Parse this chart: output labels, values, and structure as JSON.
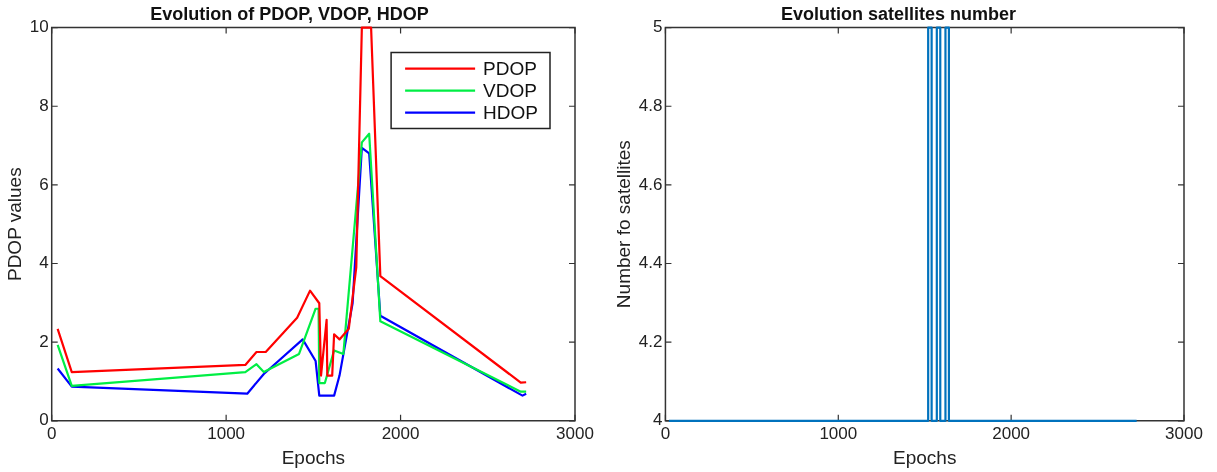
{
  "chart_data": [
    {
      "type": "line",
      "title": "Evolution of PDOP, VDOP, HDOP",
      "xlabel": "Epochs",
      "ylabel": "PDOP values",
      "xlim": [
        0,
        3000
      ],
      "xticks": [
        0,
        1000,
        2000,
        3000
      ],
      "ylim": [
        0,
        10
      ],
      "yticks": [
        0,
        2,
        4,
        6,
        8,
        10
      ],
      "legend": "top right",
      "grid": false,
      "marker": "none",
      "line_style": "solid",
      "series": [
        {
          "name": "PDOP",
          "color": "#ff0000",
          "x": [
            34,
            115,
            1110,
            1174,
            1227,
            1407,
            1481,
            1534,
            1544,
            1576,
            1580,
            1608,
            1619,
            1650,
            1703,
            1746,
            1778,
            1831,
            1884,
            2689,
            2720
          ],
          "values": [
            2.34,
            1.24,
            1.42,
            1.75,
            1.75,
            2.62,
            3.31,
            2.99,
            1.15,
            2.57,
            1.15,
            1.15,
            2.2,
            2.07,
            2.34,
            3.9,
            10,
            10,
            3.68,
            0.97,
            0.98
          ]
        },
        {
          "name": "VDOP",
          "color": "#00ee44",
          "x": [
            34,
            115,
            1110,
            1174,
            1216,
            1418,
            1513,
            1530,
            1534,
            1566,
            1619,
            1672,
            1778,
            1820,
            1841,
            1884,
            2689,
            2720
          ],
          "values": [
            1.93,
            0.89,
            1.24,
            1.44,
            1.24,
            1.7,
            2.85,
            2.85,
            0.96,
            0.96,
            1.79,
            1.7,
            7.08,
            7.3,
            5.74,
            2.53,
            0.74,
            0.74
          ]
        },
        {
          "name": "HDOP",
          "color": "#0000ff",
          "x": [
            34,
            115,
            1121,
            1216,
            1439,
            1513,
            1534,
            1619,
            1650,
            1725,
            1778,
            1820,
            1884,
            2699,
            2720
          ],
          "values": [
            1.33,
            0.87,
            0.69,
            1.19,
            2.07,
            1.52,
            0.64,
            0.64,
            1.15,
            2.99,
            6.94,
            6.8,
            2.67,
            0.64,
            0.69
          ]
        }
      ]
    },
    {
      "type": "line",
      "title": "Evolution satellites number",
      "xlabel": "Epochs",
      "ylabel": "Number fo satellites",
      "xlim": [
        0,
        3000
      ],
      "xticks": [
        0,
        1000,
        2000,
        3000
      ],
      "ylim": [
        4,
        5
      ],
      "yticks": [
        4,
        4.2,
        4.4,
        4.6,
        4.8,
        5
      ],
      "legend": false,
      "grid": false,
      "marker": "none",
      "line_style": "solid",
      "series": [
        {
          "color": "#0072bd",
          "x": [
            20,
            1520,
            1520,
            1540,
            1540,
            1570,
            1570,
            1590,
            1590,
            1620,
            1620,
            1640,
            1640,
            2726
          ],
          "values": [
            4,
            4,
            5,
            5,
            4,
            4,
            5,
            5,
            4,
            4,
            5,
            5,
            4,
            4
          ]
        }
      ]
    }
  ]
}
